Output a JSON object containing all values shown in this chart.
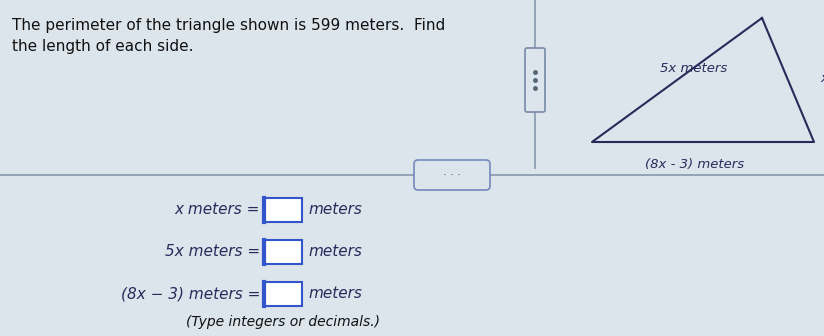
{
  "title_text": "The perimeter of the triangle shown is 599 meters.  Find\nthe length of each side.",
  "bg_color": "#dce4ec",
  "upper_bg": "#dce4ec",
  "lower_bg": "#dce4ec",
  "triangle_color": "#2a2a5a",
  "label_color": "#2a2a5a",
  "answer_color": "#2a2a5a",
  "title_color": "#111111",
  "footer_color": "#111111",
  "side_labels": [
    "5x meters",
    "x meters",
    "(8x - 3) meters"
  ],
  "answer_labels": [
    "x meters =",
    "5x meters =",
    "(8x − 3) meters ="
  ],
  "answer_suffix": "meters",
  "footer_note": "(Type integers or decimals.)",
  "divider_line_color": "#8899aa",
  "slider_border_color": "#7788aa",
  "slider_fill": "#dce4ec",
  "dots_button_border": "#7788bb",
  "dots_button_fill": "#dce4ec",
  "input_box_border": "#3355cc",
  "input_box_fill": "#ffffff"
}
